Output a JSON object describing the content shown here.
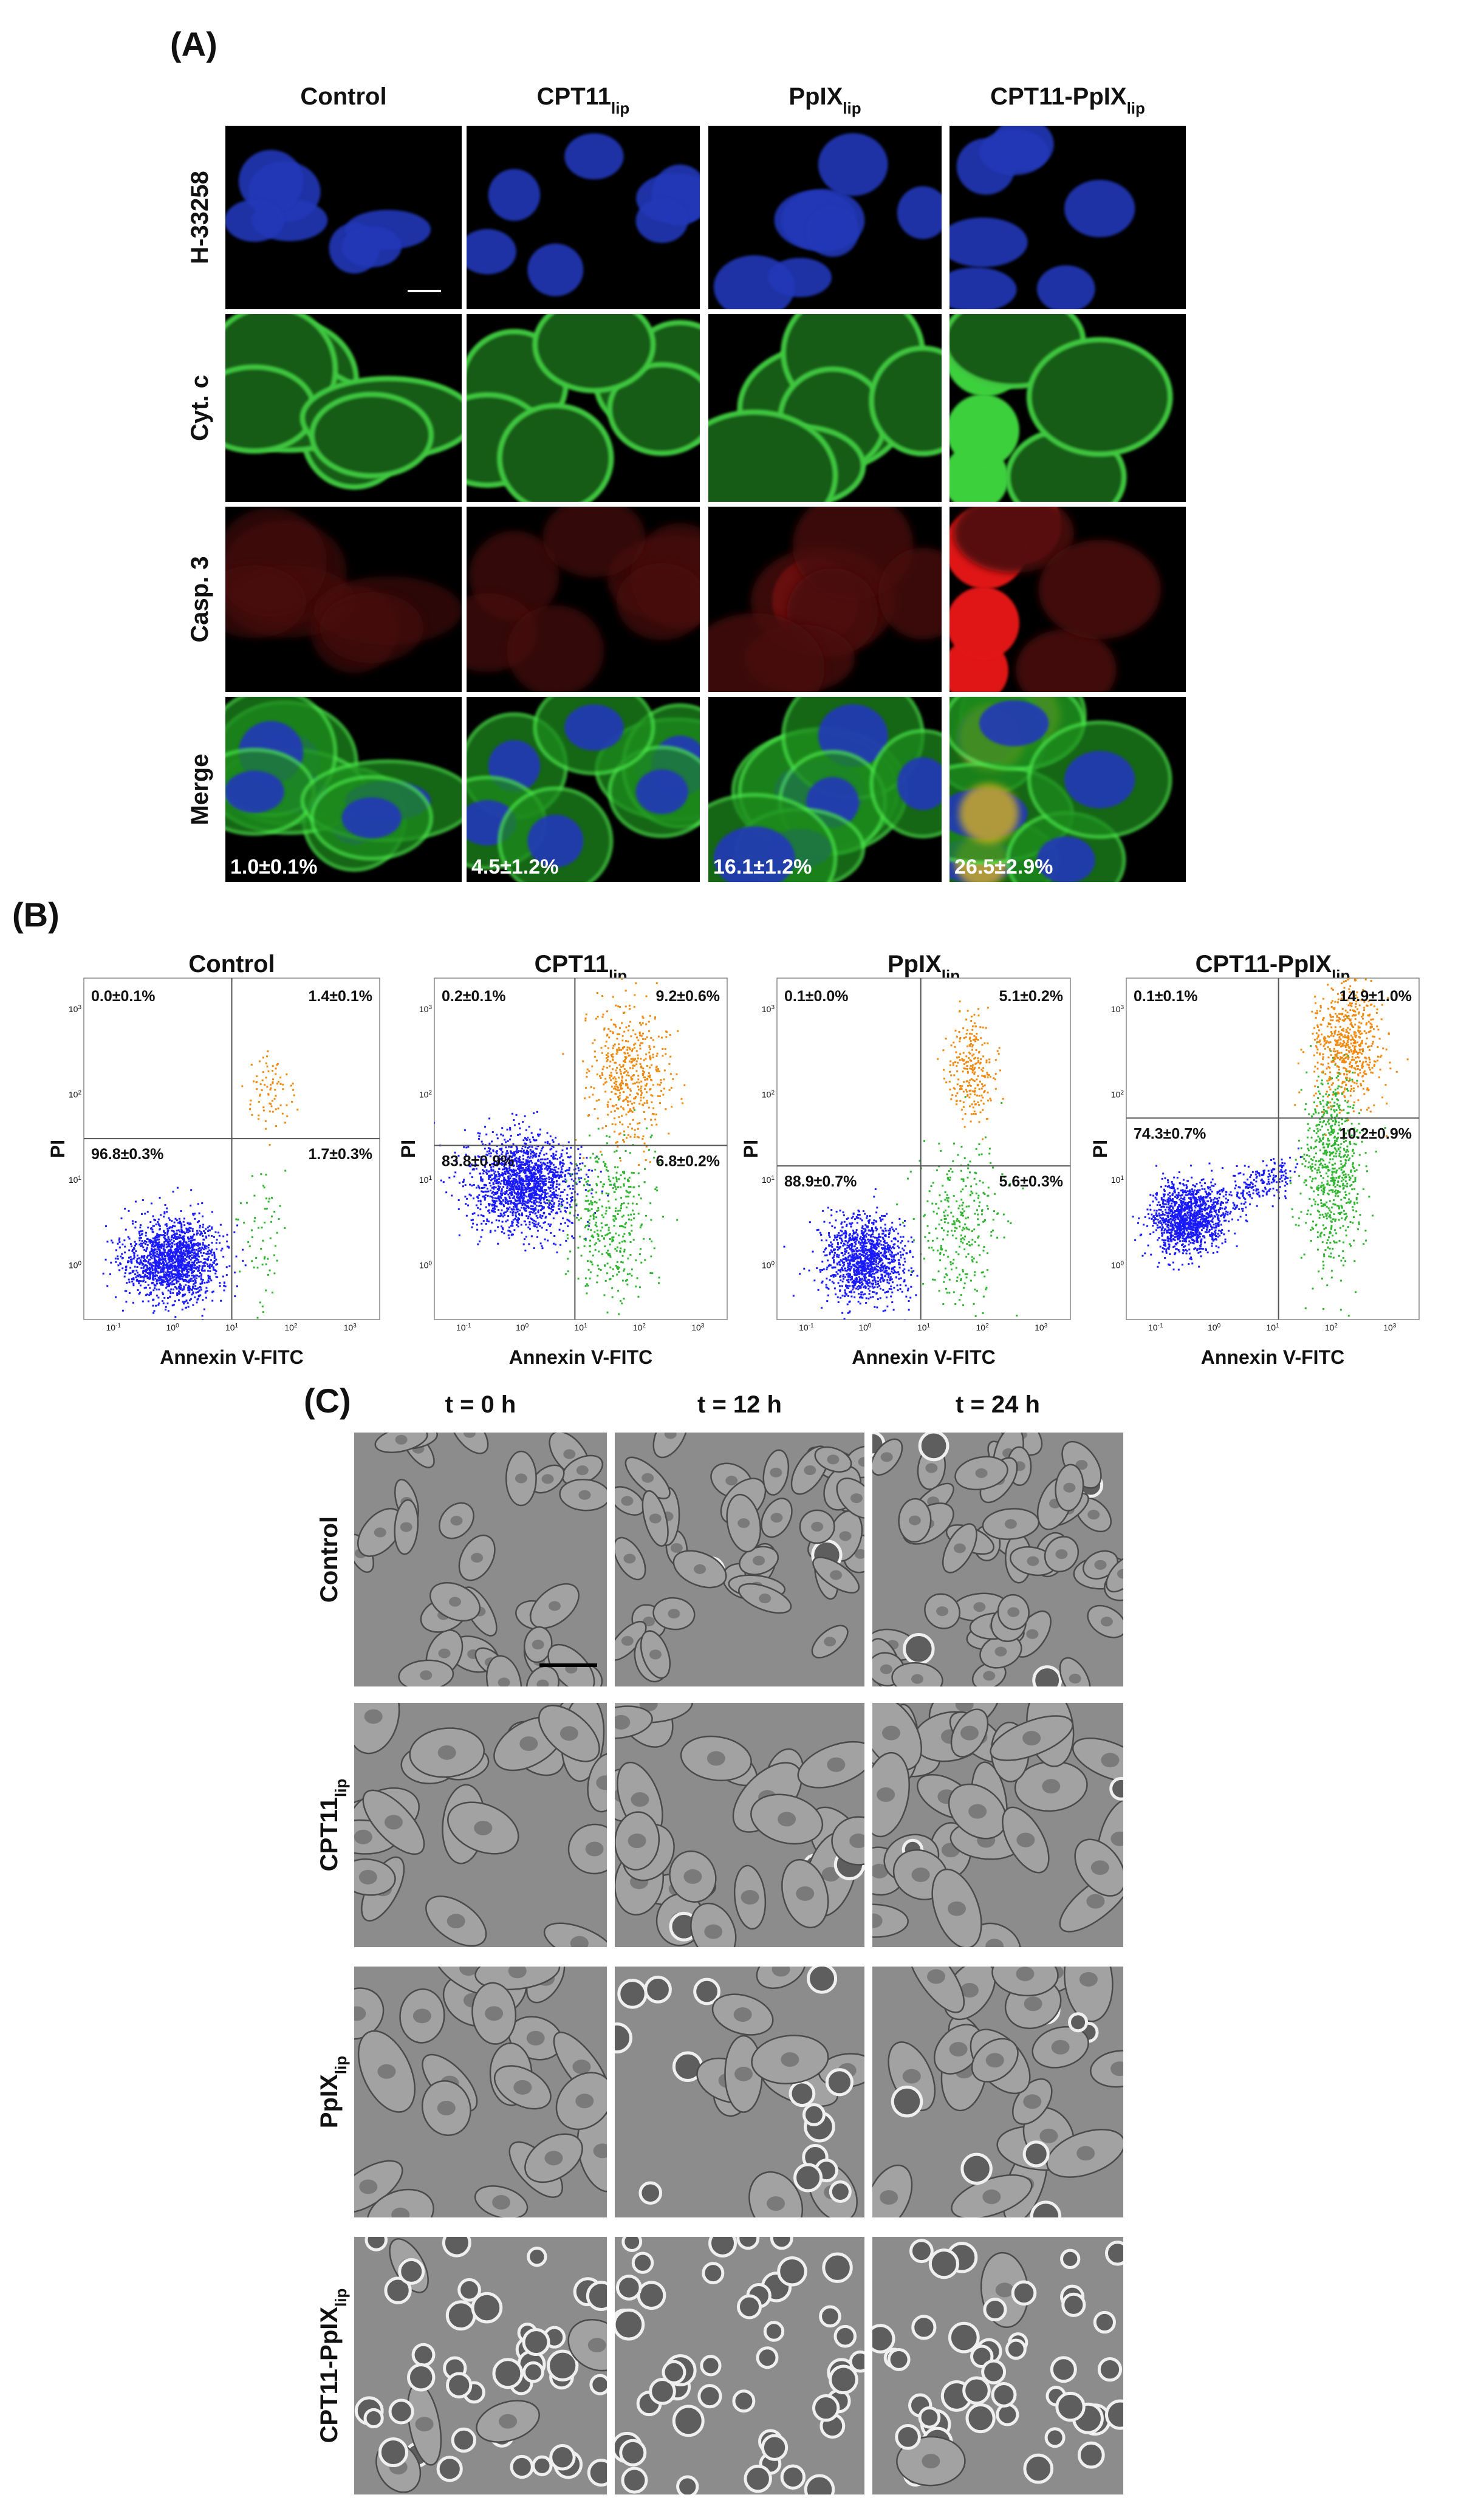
{
  "panel_a": {
    "label": "(A)",
    "columns": [
      {
        "text": "Control"
      },
      {
        "text": "CPT11",
        "sub": "lip"
      },
      {
        "text": "PpIX",
        "sub": "lip"
      },
      {
        "text": "CPT11-PpIX",
        "sub": "lip"
      }
    ],
    "rows": [
      "H-33258",
      "Cyt. c",
      "Casp. 3",
      "Merge"
    ],
    "merge_values": [
      "1.0±0.1%",
      "4.5±1.2%",
      "16.1±1.2%",
      "26.5±2.9%"
    ]
  },
  "panel_b": {
    "label": "(B)",
    "x_label": "Annexin V-FITC",
    "y_label": "PI",
    "x_ticks": [
      {
        "base": "10",
        "exp": "-1"
      },
      {
        "base": "10",
        "exp": "0"
      },
      {
        "base": "10",
        "exp": "1"
      },
      {
        "base": "10",
        "exp": "2"
      },
      {
        "base": "10",
        "exp": "3"
      }
    ],
    "y_ticks": [
      {
        "base": "10",
        "exp": "0"
      },
      {
        "base": "10",
        "exp": "1"
      },
      {
        "base": "10",
        "exp": "2"
      },
      {
        "base": "10",
        "exp": "3"
      }
    ],
    "plots": [
      {
        "title": {
          "text": "Control"
        },
        "quadrants": {
          "upper_left": "0.0±0.1%",
          "upper_right": "1.4±0.1%",
          "lower_left": "96.8±0.3%",
          "lower_right": "1.7±0.3%"
        }
      },
      {
        "title": {
          "text": "CPT11",
          "sub": "lip"
        },
        "quadrants": {
          "upper_left": "0.2±0.1%",
          "upper_right": "9.2±0.6%",
          "lower_left": "83.8±0.9%",
          "lower_right": "6.8±0.2%"
        }
      },
      {
        "title": {
          "text": "PpIX",
          "sub": "lip"
        },
        "quadrants": {
          "upper_left": "0.1±0.0%",
          "upper_right": "5.1±0.2%",
          "lower_left": "88.9±0.7%",
          "lower_right": "5.6±0.3%"
        }
      },
      {
        "title": {
          "text": "CPT11-PpIX",
          "sub": "lip"
        },
        "quadrants": {
          "upper_left": "0.1±0.1%",
          "upper_right": "14.9±1.0%",
          "lower_left": "74.3±0.7%",
          "lower_right": "10.2±0.9%"
        }
      }
    ]
  },
  "panel_c": {
    "label": "(C)",
    "times": [
      "t = 0 h",
      "t = 12 h",
      "t = 24 h"
    ],
    "rows": [
      {
        "text": "Control"
      },
      {
        "text": "CPT11",
        "sub": "lip"
      },
      {
        "text": "PpIX",
        "sub": "lip"
      },
      {
        "text": "CPT11-PpIX",
        "sub": "lip"
      }
    ]
  }
}
